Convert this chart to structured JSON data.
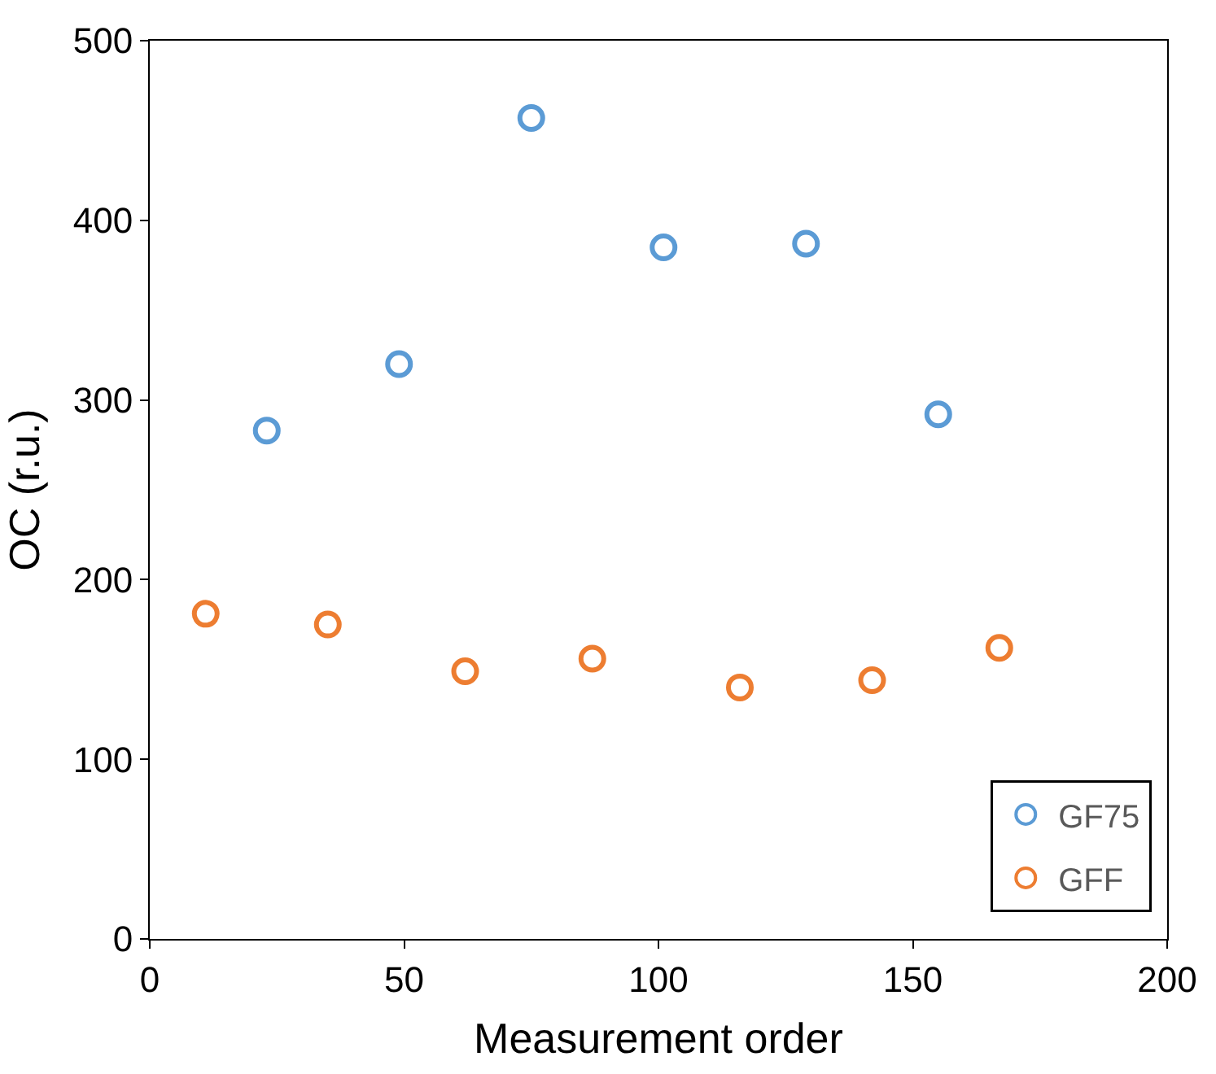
{
  "chart_data": {
    "type": "scatter",
    "xlabel": "Measurement order",
    "ylabel": "OC (r.u.)",
    "xlim": [
      0,
      200
    ],
    "xticks": [
      0,
      50,
      100,
      150,
      200
    ],
    "ylim": [
      0,
      500
    ],
    "yticks": [
      0,
      100,
      200,
      300,
      400,
      500
    ],
    "legend": "bottom right",
    "marker": "circle",
    "series": [
      {
        "name": "GF75",
        "color": "#5b9bd5",
        "x": [
          23,
          49,
          75,
          101,
          129,
          155
        ],
        "values": [
          283,
          320,
          457,
          385,
          387,
          292
        ]
      },
      {
        "name": "GFF",
        "color": "#ed7d31",
        "x": [
          11,
          35,
          62,
          87,
          116,
          142,
          167
        ],
        "values": [
          181,
          175,
          149,
          156,
          140,
          144,
          162
        ]
      }
    ]
  }
}
